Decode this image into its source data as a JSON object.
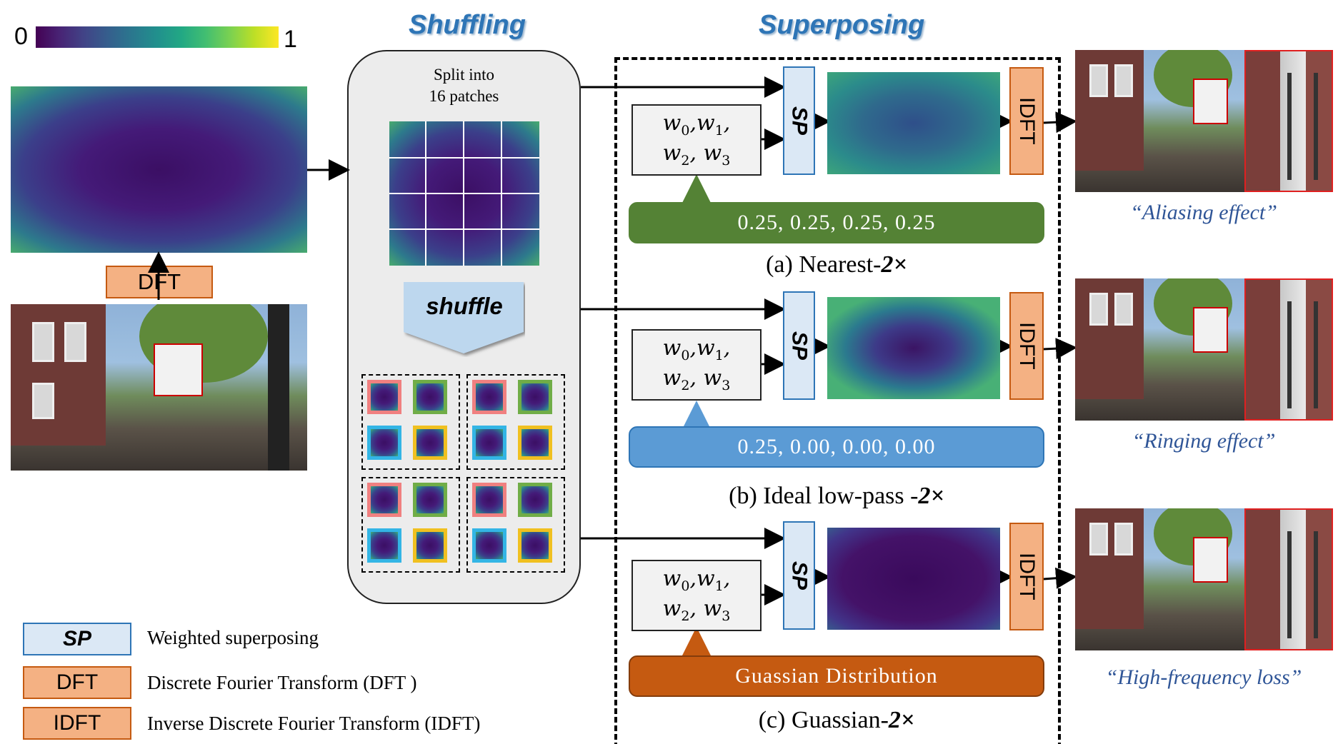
{
  "colorbar": {
    "min_label": "0",
    "max_label": "1"
  },
  "section_titles": {
    "shuffling": "Shuffling",
    "superposing": "Superposing"
  },
  "input": {
    "dft_label": "DFT"
  },
  "shuffle_panel": {
    "split_text_line1": "Split into",
    "split_text_line2": "16 patches",
    "shuffle_label": "shuffle"
  },
  "weights": {
    "line1_a": "w",
    "line1_a_sub": "0",
    "line1_b": "w",
    "line1_b_sub": "1",
    "line2_a": "w",
    "line2_a_sub": "2",
    "line2_b": "w",
    "line2_b_sub": "3"
  },
  "rows": [
    {
      "sp_label": "SP",
      "idft_label": "IDFT",
      "weights_bar": "0.25,  0.25,  0.25,  0.25",
      "caption_prefix": "(a) Nearest-",
      "caption_factor": "2×",
      "effect": "“Aliasing effect”"
    },
    {
      "sp_label": "SP",
      "idft_label": "IDFT",
      "weights_bar": "0.25,  0.00,  0.00,  0.00",
      "caption_prefix": "(b) Ideal low-pass -",
      "caption_factor": "2×",
      "effect": "“Ringing effect”"
    },
    {
      "sp_label": "SP",
      "idft_label": "IDFT",
      "weights_bar": "Guassian Distribution",
      "caption_prefix": "(c) Guassian-",
      "caption_factor": "2×",
      "effect": "“High-frequency loss”"
    }
  ],
  "legend": [
    {
      "key": "SP",
      "text": "Weighted superposing"
    },
    {
      "key": "DFT",
      "text": "Discrete Fourier Transform (DFT )"
    },
    {
      "key": "IDFT",
      "text": "Inverse Discrete Fourier Transform (IDFT)"
    }
  ],
  "colors": {
    "dft": "#f4b183",
    "sp": "#dbe8f5",
    "green_bar": "#548235",
    "blue_bar": "#5b9bd5",
    "orange_bar": "#c55a11",
    "title_blue": "#2e75b6"
  },
  "patch_border_colors": [
    "#f08080",
    "#70ad47",
    "#33b5e5",
    "#f0c020"
  ]
}
